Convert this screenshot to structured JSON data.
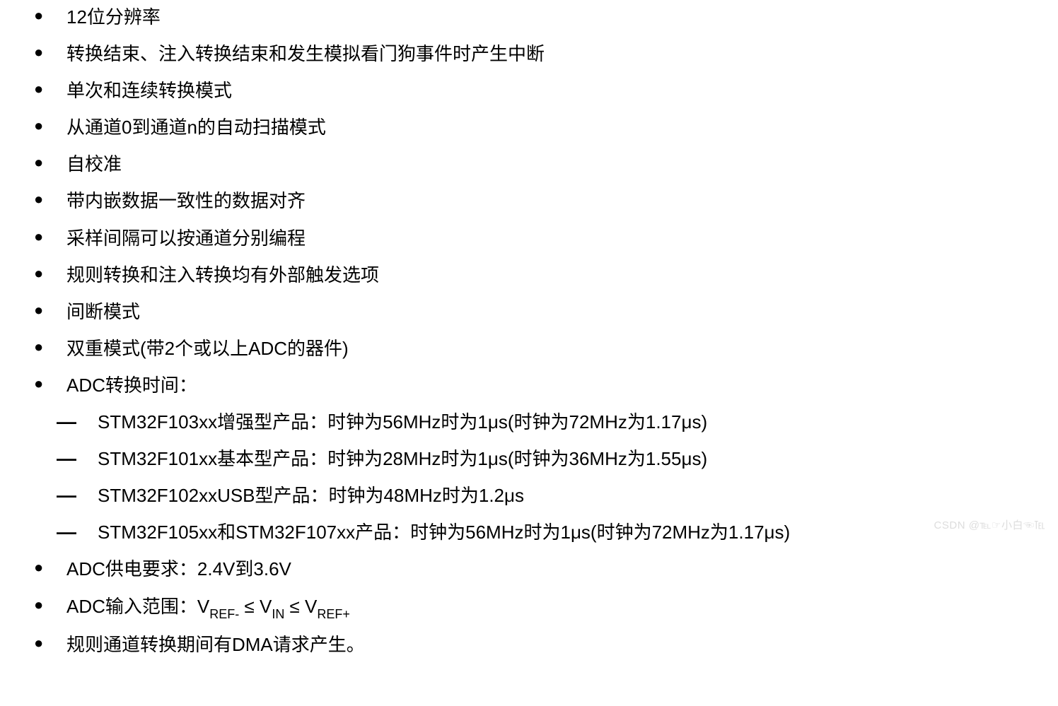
{
  "text_color": "#000000",
  "background_color": "#ffffff",
  "watermark_color": "#dddddd",
  "font_size_main": 26,
  "font_size_sub": 18,
  "bullets": [
    "12位分辨率",
    "转换结束、注入转换结束和发生模拟看门狗事件时产生中断",
    "单次和连续转换模式",
    "从通道0到通道n的自动扫描模式",
    "自校准",
    "带内嵌数据一致性的数据对齐",
    "采样间隔可以按通道分别编程",
    "规则转换和注入转换均有外部触发选项",
    "间断模式",
    "双重模式(带2个或以上ADC的器件)",
    "ADC转换时间："
  ],
  "sub_bullets": [
    "STM32F103xx增强型产品：时钟为56MHz时为1μs(时钟为72MHz为1.17μs)",
    "STM32F101xx基本型产品：时钟为28MHz时为1μs(时钟为36MHz为1.55μs)",
    "STM32F102xxUSB型产品：时钟为48MHz时为1.2μs",
    "STM32F105xx和STM32F107xx产品：时钟为56MHz时为1μs(时钟为72MHz为1.17μs)"
  ],
  "bullets_after": {
    "supply": "ADC供电要求：2.4V到3.6V",
    "range_prefix": "ADC输入范围：V",
    "range_ref_minus": "REF-",
    "range_leq1": " ≤ V",
    "range_in": "IN",
    "range_leq2": " ≤ V",
    "range_ref_plus": "REF+",
    "dma": "规则通道转换期间有DMA请求产生。"
  },
  "watermark": "CSDN @℡☞小白☜℡"
}
